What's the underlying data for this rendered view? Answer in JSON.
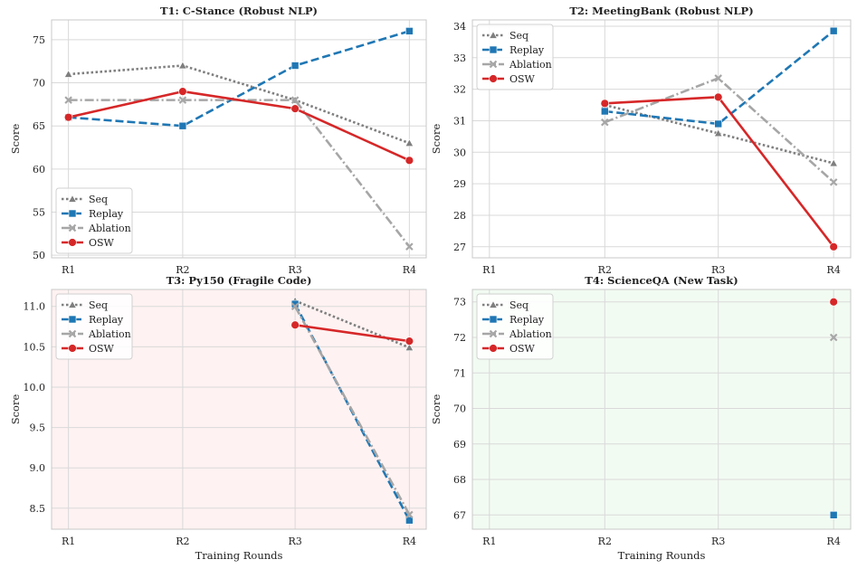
{
  "colors": {
    "seq": "#7f7f7f",
    "replay": "#1f77b4",
    "ablation": "#a6a6a6",
    "osw": "#d62728",
    "panel_default": "#ffffff",
    "panel_fragile": "#fff2f2",
    "panel_new": "#f2fbf2"
  },
  "chart_data": [
    {
      "type": "line",
      "title": "T1: C-Stance (Robust NLP)",
      "xlabel": "",
      "ylabel": "Score",
      "categories": [
        "R1",
        "R2",
        "R3",
        "R4"
      ],
      "ylim": [
        49.7,
        77.3
      ],
      "yticks": [
        50,
        55,
        60,
        65,
        70,
        75
      ],
      "ytick_labels": [
        "50",
        "55",
        "60",
        "65",
        "70",
        "75"
      ],
      "legend_position": "lower-left",
      "background": "panel_default",
      "series": [
        {
          "name": "Seq",
          "values": [
            71,
            72,
            68,
            63
          ]
        },
        {
          "name": "Replay",
          "values": [
            66,
            65,
            72,
            76
          ]
        },
        {
          "name": "Ablation",
          "values": [
            68,
            68,
            68,
            51
          ]
        },
        {
          "name": "OSW",
          "values": [
            66,
            69,
            67,
            61
          ]
        }
      ]
    },
    {
      "type": "line",
      "title": "T2: MeetingBank (Robust NLP)",
      "xlabel": "",
      "ylabel": "Score",
      "categories": [
        "R1",
        "R2",
        "R3",
        "R4"
      ],
      "ylim": [
        26.65,
        34.2
      ],
      "yticks": [
        27,
        28,
        29,
        30,
        31,
        32,
        33,
        34
      ],
      "ytick_labels": [
        "27",
        "28",
        "29",
        "30",
        "31",
        "32",
        "33",
        "34"
      ],
      "legend_position": "top-left",
      "background": "panel_default",
      "series": [
        {
          "name": "Seq",
          "values": [
            null,
            31.5,
            30.6,
            29.65
          ]
        },
        {
          "name": "Replay",
          "values": [
            null,
            31.3,
            30.9,
            33.85
          ]
        },
        {
          "name": "Ablation",
          "values": [
            null,
            30.95,
            32.35,
            29.05
          ]
        },
        {
          "name": "OSW",
          "values": [
            null,
            31.55,
            31.75,
            27.0
          ]
        }
      ]
    },
    {
      "type": "line",
      "title": "T3: Py150 (Fragile Code)",
      "xlabel": "Training Rounds",
      "ylabel": "Score",
      "categories": [
        "R1",
        "R2",
        "R3",
        "R4"
      ],
      "ylim": [
        8.24,
        11.21
      ],
      "yticks": [
        8.5,
        9.0,
        9.5,
        10.0,
        10.5,
        11.0
      ],
      "ytick_labels": [
        "8.5",
        "9.0",
        "9.5",
        "10.0",
        "10.5",
        "11.0"
      ],
      "legend_position": "top-left",
      "background": "panel_fragile",
      "series": [
        {
          "name": "Seq",
          "values": [
            null,
            null,
            11.07,
            10.49
          ]
        },
        {
          "name": "Replay",
          "values": [
            null,
            null,
            11.03,
            8.35
          ]
        },
        {
          "name": "Ablation",
          "values": [
            null,
            null,
            11.0,
            8.42
          ]
        },
        {
          "name": "OSW",
          "values": [
            null,
            null,
            10.77,
            10.57
          ]
        }
      ]
    },
    {
      "type": "line",
      "title": "T4: ScienceQA (New Task)",
      "xlabel": "Training Rounds",
      "ylabel": "Score",
      "categories": [
        "R1",
        "R2",
        "R3",
        "R4"
      ],
      "ylim": [
        66.6,
        73.35
      ],
      "yticks": [
        67,
        68,
        69,
        70,
        71,
        72,
        73
      ],
      "ytick_labels": [
        "67",
        "68",
        "69",
        "70",
        "71",
        "72",
        "73"
      ],
      "legend_position": "top-left",
      "background": "panel_new",
      "series": [
        {
          "name": "Seq",
          "values": [
            null,
            null,
            null,
            null
          ]
        },
        {
          "name": "Replay",
          "values": [
            null,
            null,
            null,
            67
          ]
        },
        {
          "name": "Ablation",
          "values": [
            null,
            null,
            null,
            72
          ]
        },
        {
          "name": "OSW",
          "values": [
            null,
            null,
            null,
            73
          ]
        }
      ]
    }
  ]
}
